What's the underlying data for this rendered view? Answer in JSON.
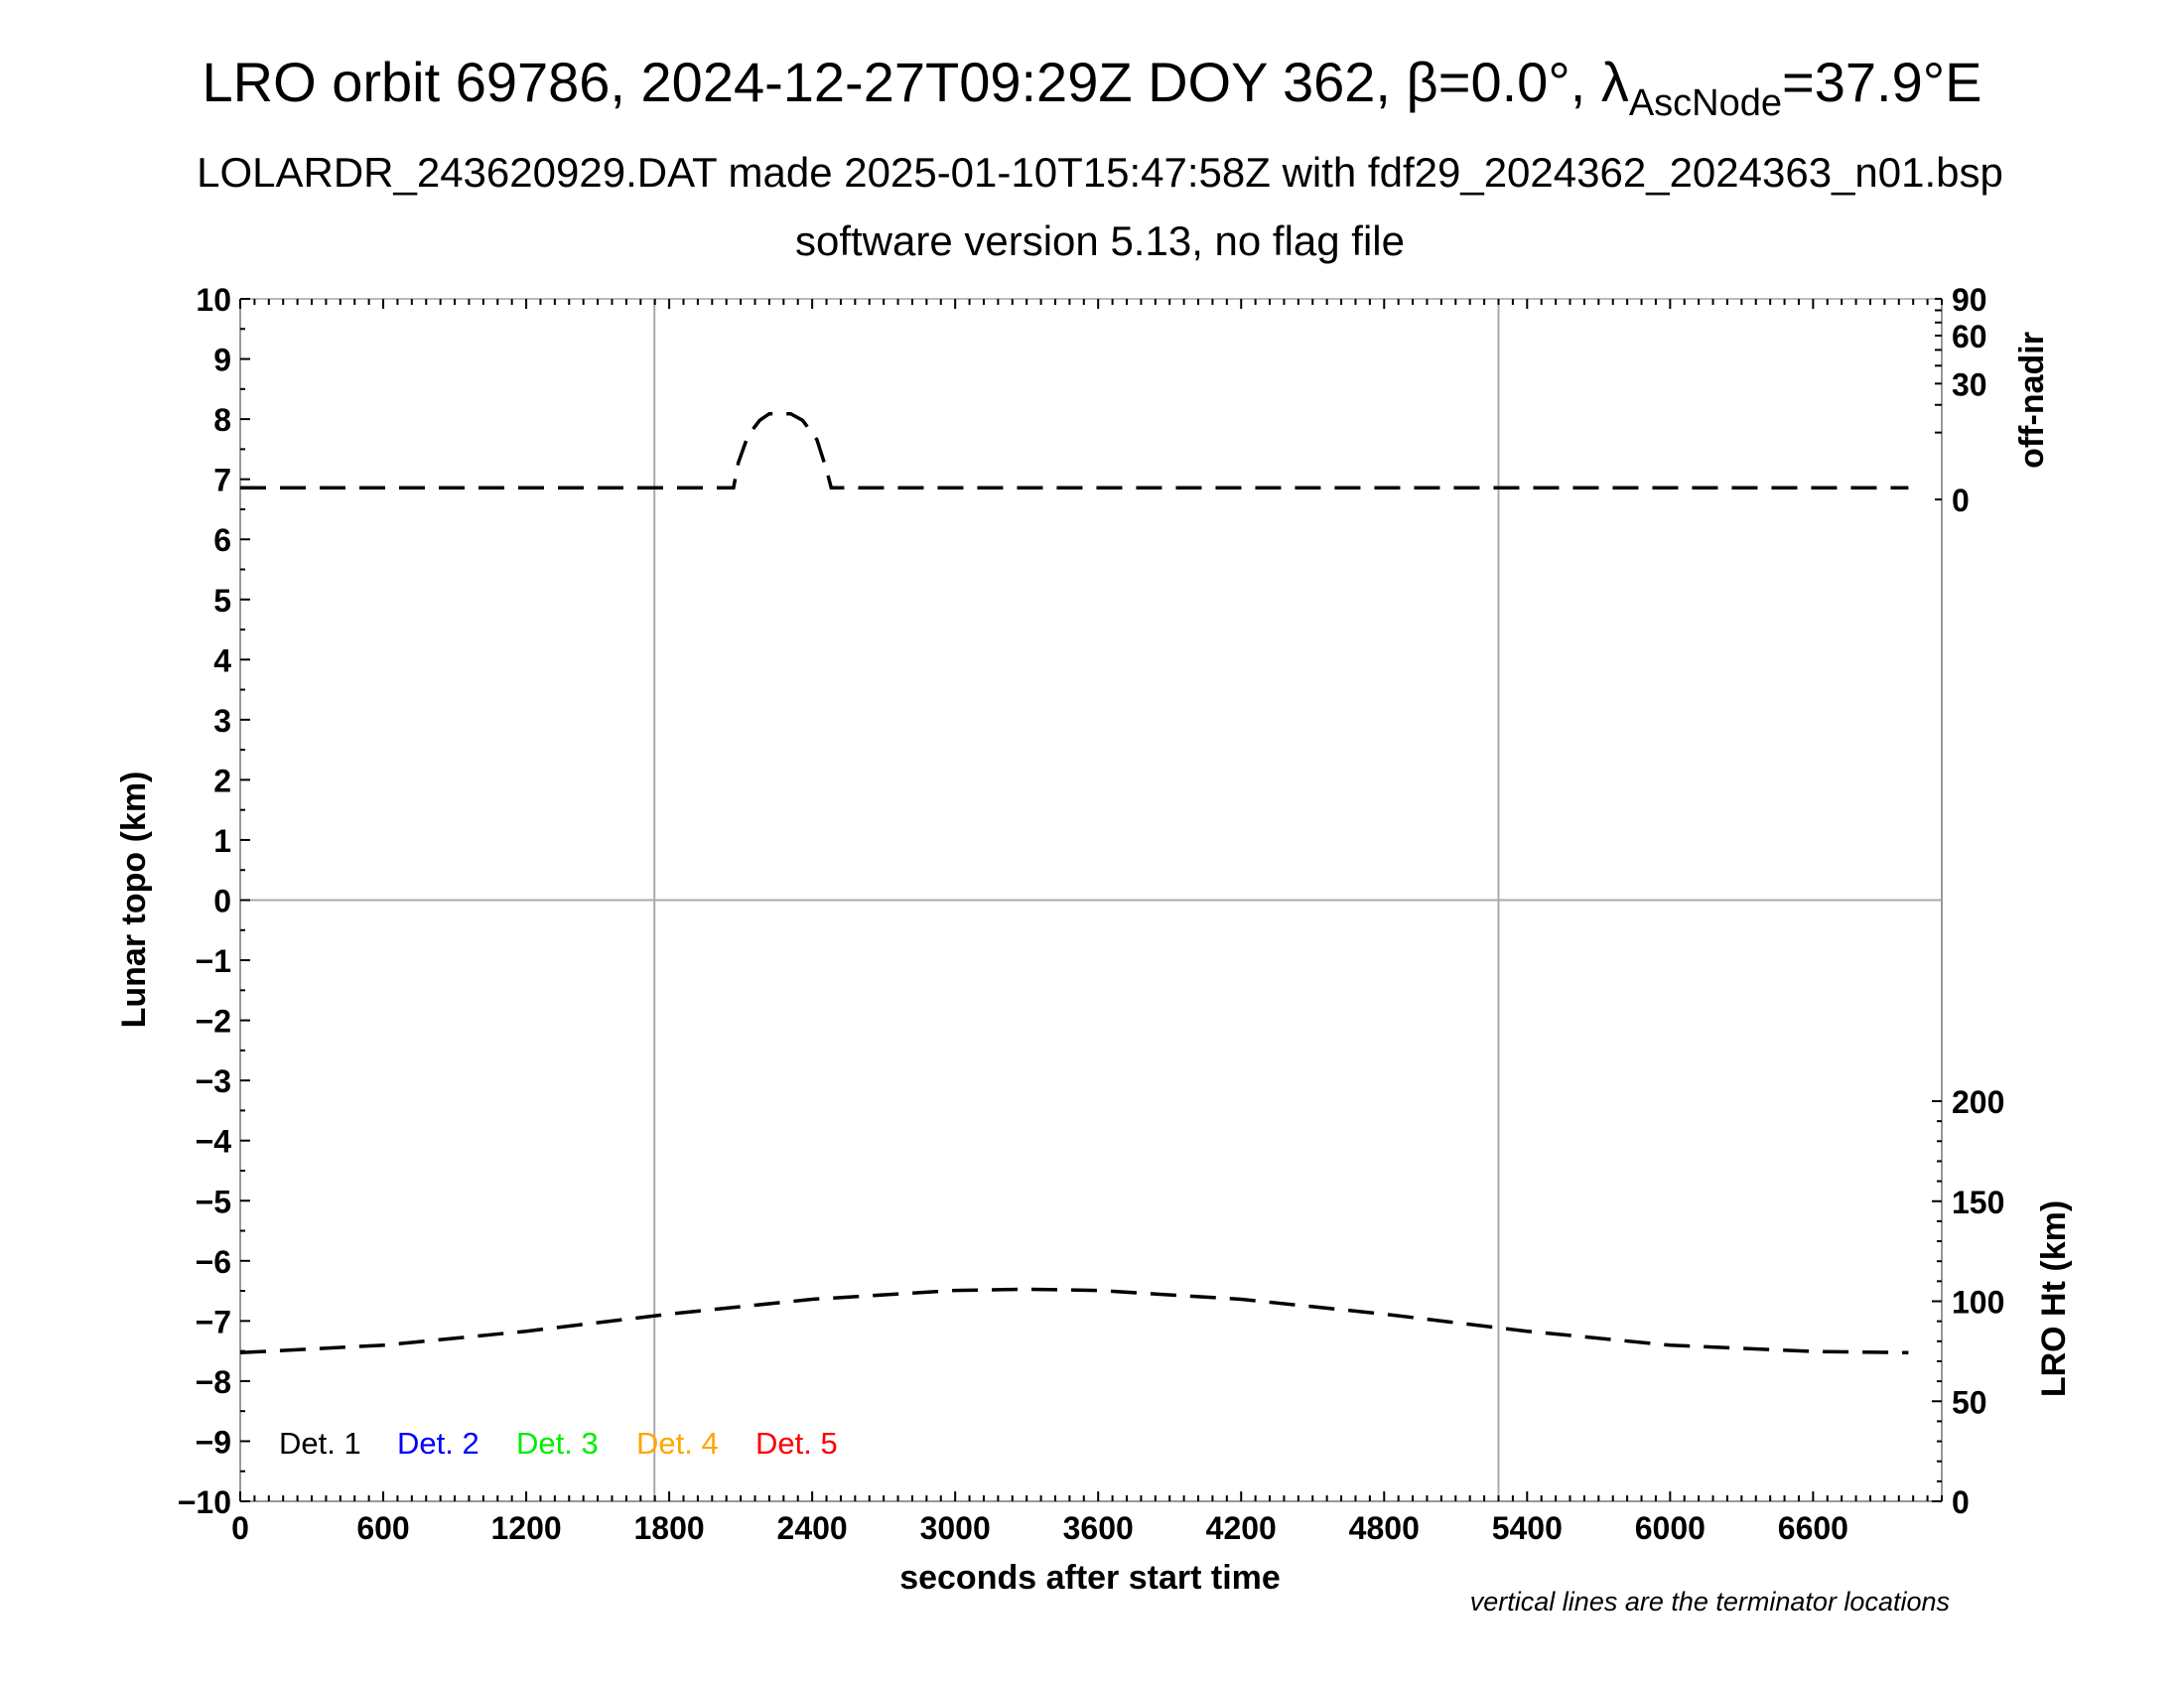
{
  "chart_data": {
    "type": "line",
    "title_main": "LRO orbit 69786, 2024-12-27T09:29Z DOY 362, β=0.0°, λ",
    "title_sub": "AscNode",
    "title_end": "=37.9°E",
    "subtitle": "LOLARDR_243620929.DAT made 2025-01-10T15:47:58Z with fdf29_2024362_2024363_n01.bsp",
    "subtitle2": "software version 5.13, no flag file",
    "xlabel": "seconds after start time",
    "ylabel": "Lunar topo (km)",
    "ylabel_right_top": "off-nadir",
    "ylabel_right_bottom": "LRO Ht (km)",
    "footnote": "vertical lines are the terminator locations",
    "xlim": [
      0,
      7140
    ],
    "ylim": [
      -10,
      10
    ],
    "x_ticks": [
      "0",
      "600",
      "1200",
      "1800",
      "2400",
      "3000",
      "3600",
      "4200",
      "4800",
      "5400",
      "6000",
      "6600"
    ],
    "y_ticks": [
      "10",
      "9",
      "8",
      "7",
      "6",
      "5",
      "4",
      "3",
      "2",
      "1",
      "0",
      "−1",
      "−2",
      "−3",
      "−4",
      "−5",
      "−6",
      "−7",
      "−8",
      "−9",
      "−10"
    ],
    "off_nadir_axis": {
      "scale": "sqrt",
      "range": [
        0,
        90
      ],
      "ticks": [
        "0",
        "30",
        "60",
        "90"
      ]
    },
    "lro_ht_axis": {
      "range": [
        0,
        300
      ],
      "ticks": [
        "0",
        "50",
        "100",
        "150",
        "200"
      ]
    },
    "terminator_lines_x": [
      1738,
      5280
    ],
    "legend": [
      {
        "label": "Det. 1",
        "color": "#000000"
      },
      {
        "label": "Det. 2",
        "color": "#0000ff"
      },
      {
        "label": "Det. 3",
        "color": "#00ee00"
      },
      {
        "label": "Det. 4",
        "color": "#ffa500"
      },
      {
        "label": "Det. 5",
        "color": "#ff0000"
      }
    ],
    "series": [
      {
        "axis": "off-nadir",
        "style": "dashed",
        "color": "#000000",
        "x": [
          0,
          2070,
          2090,
          2130,
          2180,
          2220,
          2310,
          2360,
          2420,
          2460,
          2480,
          2600,
          2700,
          7000
        ],
        "y": [
          0.3,
          0.3,
          3,
          9,
          14,
          16.4,
          16.4,
          14,
          8,
          2,
          0.3,
          0.3,
          0.3,
          0.3
        ]
      },
      {
        "axis": "LRO Ht",
        "style": "dashed",
        "color": "#000000",
        "x": [
          0,
          600,
          1200,
          1800,
          2400,
          3000,
          3300,
          3600,
          4200,
          4800,
          5400,
          6000,
          6600,
          7000
        ],
        "y": [
          74.3,
          78,
          85,
          93.6,
          101,
          105.4,
          106,
          105.4,
          101,
          93.6,
          85,
          78,
          74.9,
          74.3
        ]
      }
    ]
  }
}
